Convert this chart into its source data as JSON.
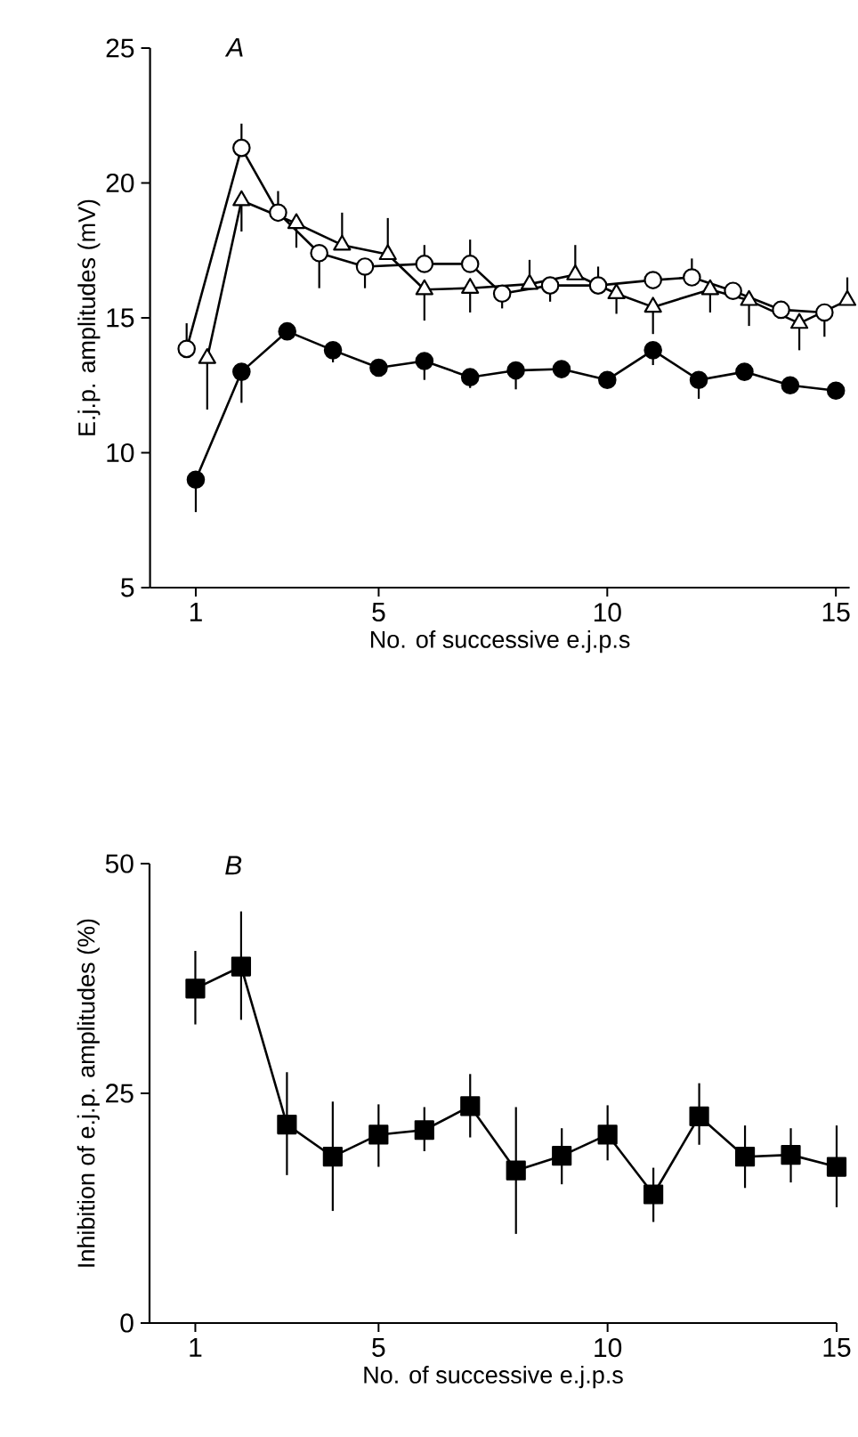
{
  "chart_data": [
    {
      "type": "line",
      "xlabel": "No. of successive e.j.p.s",
      "ylabel": "E.j.p. amplitudes (mV)",
      "annotations": [
        "A"
      ],
      "xlim": [
        0,
        15.3
      ],
      "ylim": [
        5,
        25
      ],
      "xticks": [
        1,
        5,
        10,
        15
      ],
      "yticks": [
        5,
        10,
        15,
        20,
        25
      ],
      "line_style": "solid",
      "series": [
        {
          "color": "#000000",
          "marker": "circle",
          "x": [
            1,
            2,
            3,
            4,
            5,
            6,
            7,
            8,
            9,
            10,
            11,
            12,
            13,
            14,
            15
          ],
          "values": [
            9.0,
            13.0,
            14.5,
            13.8,
            13.15,
            13.4,
            12.8,
            13.05,
            13.1,
            12.7,
            13.8,
            12.7,
            13.0,
            12.5,
            12.3
          ],
          "errors": [
            [
              7.8,
              9.0
            ],
            [
              11.85,
              13.0
            ],
            null,
            [
              13.35,
              13.8
            ],
            null,
            [
              12.7,
              13.4
            ],
            [
              12.4,
              12.8
            ],
            [
              12.35,
              13.05
            ],
            null,
            null,
            [
              13.25,
              13.8
            ],
            [
              12.0,
              12.7
            ],
            null,
            null,
            null
          ]
        },
        {
          "color": "#ffffff",
          "marker": "circle",
          "x": [
            0.8,
            2.0,
            2.8,
            3.7,
            4.7,
            6.0,
            7.0,
            7.7,
            8.75,
            9.8,
            11.0,
            11.85,
            12.75,
            13.8,
            14.75
          ],
          "values": [
            13.85,
            21.3,
            18.9,
            17.4,
            16.9,
            17.0,
            17.0,
            15.9,
            16.2,
            16.2,
            16.4,
            16.5,
            16.0,
            15.3,
            15.2
          ],
          "errors": [
            [
              13.85,
              14.8
            ],
            [
              21.3,
              22.2
            ],
            [
              18.9,
              19.7
            ],
            [
              16.1,
              17.4
            ],
            [
              16.1,
              16.9
            ],
            [
              17.0,
              17.7
            ],
            [
              17.0,
              17.9
            ],
            [
              15.35,
              15.9
            ],
            [
              15.6,
              16.2
            ],
            [
              16.2,
              16.9
            ],
            null,
            [
              16.5,
              17.2
            ],
            null,
            null,
            [
              14.3,
              15.2
            ]
          ]
        },
        {
          "color": "#ffffff",
          "marker": "triangle",
          "x": [
            1.25,
            2.0,
            3.2,
            4.2,
            5.2,
            6.0,
            7.0,
            8.3,
            9.3,
            10.2,
            11.0,
            12.25,
            13.1,
            14.2,
            15.25
          ],
          "values": [
            13.5,
            19.35,
            18.5,
            17.7,
            17.35,
            16.05,
            16.1,
            16.25,
            16.6,
            15.9,
            15.4,
            16.05,
            15.65,
            14.8,
            15.65
          ],
          "errors": [
            [
              11.6,
              13.5
            ],
            [
              18.2,
              19.35
            ],
            [
              17.6,
              18.5
            ],
            [
              17.7,
              18.9
            ],
            [
              17.35,
              18.7
            ],
            [
              14.9,
              16.05
            ],
            [
              15.2,
              16.1
            ],
            [
              16.25,
              17.15
            ],
            [
              16.6,
              17.7
            ],
            [
              15.15,
              15.9
            ],
            [
              14.4,
              15.4
            ],
            [
              15.2,
              16.05
            ],
            [
              14.7,
              15.65
            ],
            [
              13.8,
              14.8
            ],
            [
              15.65,
              16.5
            ]
          ]
        }
      ]
    },
    {
      "type": "line",
      "xlabel": "No. of successive e.j.p.s",
      "ylabel": "Inhibition of e.j.p. amplitudes (%)",
      "annotations": [
        "B"
      ],
      "xlim": [
        0,
        15
      ],
      "ylim": [
        0,
        50
      ],
      "xticks": [
        1,
        5,
        10,
        15
      ],
      "yticks": [
        0,
        25,
        50
      ],
      "line_style": "solid",
      "series": [
        {
          "color": "#000000",
          "marker": "square",
          "x": [
            1,
            2,
            3,
            4,
            5,
            6,
            7,
            8,
            9,
            10,
            11,
            12,
            13,
            14,
            15
          ],
          "values": [
            36.4,
            38.8,
            21.6,
            18.1,
            20.5,
            21.0,
            23.6,
            16.6,
            18.2,
            20.5,
            14.0,
            22.5,
            18.1,
            18.3,
            17.0
          ],
          "errors": [
            [
              32.5,
              40.5
            ],
            [
              33.0,
              44.8
            ],
            [
              16.1,
              27.3
            ],
            [
              12.2,
              24.1
            ],
            [
              17.0,
              23.8
            ],
            [
              18.7,
              23.5
            ],
            [
              20.2,
              27.1
            ],
            [
              9.7,
              23.5
            ],
            [
              15.1,
              21.2
            ],
            [
              17.7,
              23.7
            ],
            [
              11.0,
              16.9
            ],
            [
              19.4,
              26.1
            ],
            [
              14.7,
              21.5
            ],
            [
              15.3,
              21.2
            ],
            [
              12.6,
              21.5
            ]
          ]
        }
      ]
    }
  ]
}
